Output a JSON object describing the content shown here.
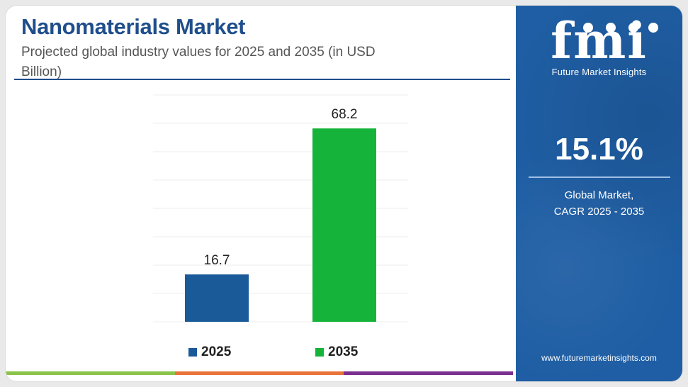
{
  "header": {
    "title": "Nanomaterials Market",
    "subtitle": "Projected global industry values for 2025 and 2035 (in USD Billion)"
  },
  "chart_data": {
    "type": "bar",
    "categories": [
      "2025",
      "2035"
    ],
    "values": [
      16.7,
      68.2
    ],
    "value_labels": [
      "16.7",
      "68.2"
    ],
    "colors": [
      "#1b5a99",
      "#16b33b"
    ],
    "title": "Nanomaterials Market",
    "subtitle": "Projected global industry values for 2025 and 2035 (in USD Billion)",
    "xlabel": "",
    "ylabel": "",
    "ylim": [
      0,
      80
    ],
    "grid": true,
    "legend": "bottom",
    "legend_entries": [
      "2025",
      "2035"
    ]
  },
  "sidebar": {
    "logo_mark": "fmi",
    "logo_text": "Future Market Insights",
    "cagr_value": "15.1%",
    "cagr_label_line1": "Global Market,",
    "cagr_label_line2": "CAGR 2025 - 2035",
    "website": "www.futuremarketinsights.com"
  },
  "theme": {
    "title_color": "#1f4e8c",
    "panel_color": "#1f5ea4",
    "strip_colors": [
      "#8bc34a",
      "#e8743b",
      "#7b2f8e"
    ]
  }
}
